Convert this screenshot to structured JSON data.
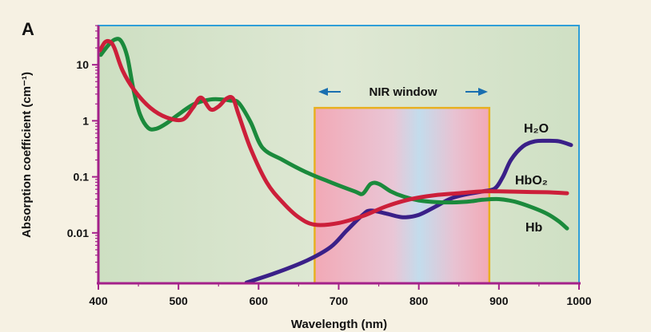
{
  "chart_data": {
    "type": "line",
    "panel_label": "A",
    "xlabel": "Wavelength (nm)",
    "ylabel": "Absorption coefficient (cm⁻¹)",
    "xlim": [
      400,
      1000
    ],
    "ylim_log10": [
      -2.9,
      1.7
    ],
    "y_scale": "log",
    "x_ticks": [
      400,
      500,
      600,
      700,
      800,
      900,
      1000
    ],
    "y_ticks": [
      {
        "value": 10,
        "label": "10"
      },
      {
        "value": 1,
        "label": "1"
      },
      {
        "value": 0.1,
        "label": "0.1"
      },
      {
        "value": 0.01,
        "label": "0.01"
      }
    ],
    "grid": false,
    "colors": {
      "frame": "#2f9fd8",
      "axis": "#a4218a",
      "plot_bg": "#d4e2c8",
      "nir_border": "#e8b020",
      "nir_pink": "#f0aab8",
      "nir_blue": "#c0dcec"
    },
    "nir_window": {
      "label": "NIR window",
      "x_start": 670,
      "x_end": 888,
      "y_top": 1.7
    },
    "series": [
      {
        "name": "Hb",
        "color": "#1b8a3c",
        "x": [
          403,
          412,
          420,
          428,
          436,
          444,
          452,
          462,
          472,
          485,
          500,
          520,
          540,
          555,
          565,
          575,
          590,
          605,
          630,
          660,
          690,
          720,
          730,
          740,
          750,
          765,
          780,
          800,
          830,
          860,
          880,
          900,
          920,
          940,
          960,
          975,
          985
        ],
        "y": [
          15,
          22,
          28,
          27,
          14,
          3.5,
          1.3,
          0.75,
          0.72,
          0.9,
          1.3,
          2.0,
          2.4,
          2.4,
          2.3,
          2.1,
          0.95,
          0.33,
          0.2,
          0.12,
          0.08,
          0.055,
          0.05,
          0.075,
          0.075,
          0.055,
          0.045,
          0.038,
          0.035,
          0.036,
          0.039,
          0.04,
          0.036,
          0.029,
          0.022,
          0.016,
          0.012
        ]
      },
      {
        "name": "HbO₂",
        "color": "#cc1f3a",
        "x": [
          402,
          408,
          414,
          420,
          430,
          445,
          465,
          485,
          505,
          518,
          528,
          540,
          550,
          560,
          568,
          575,
          590,
          610,
          630,
          650,
          670,
          700,
          730,
          760,
          790,
          820,
          850,
          880,
          900,
          930,
          960,
          985
        ],
        "y": [
          18,
          25,
          26,
          20,
          8,
          3.5,
          1.7,
          1.15,
          1.05,
          1.7,
          2.6,
          1.6,
          1.8,
          2.5,
          2.5,
          1.3,
          0.32,
          0.08,
          0.035,
          0.019,
          0.014,
          0.015,
          0.02,
          0.03,
          0.04,
          0.047,
          0.051,
          0.055,
          0.055,
          0.054,
          0.053,
          0.051
        ]
      },
      {
        "name": "H₂O",
        "color": "#3a2088",
        "x": [
          585,
          620,
          660,
          690,
          710,
          730,
          740,
          760,
          780,
          800,
          820,
          840,
          860,
          880,
          895,
          905,
          915,
          930,
          945,
          960,
          975,
          990
        ],
        "y": [
          0.0013,
          0.0019,
          0.0032,
          0.0056,
          0.011,
          0.021,
          0.025,
          0.022,
          0.019,
          0.021,
          0.029,
          0.041,
          0.049,
          0.055,
          0.062,
          0.1,
          0.2,
          0.35,
          0.43,
          0.44,
          0.43,
          0.37
        ]
      }
    ],
    "annotations": [
      {
        "series": "H₂O",
        "text": "H₂O"
      },
      {
        "series": "HbO₂",
        "text": "HbO₂"
      },
      {
        "series": "Hb",
        "text": "Hb"
      }
    ]
  }
}
